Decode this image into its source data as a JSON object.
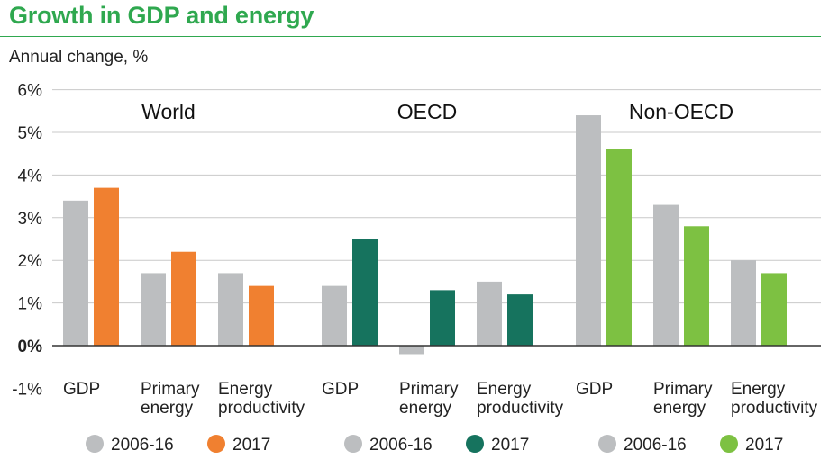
{
  "title": "Growth in GDP and energy",
  "chart_data": {
    "type": "bar",
    "ylabel": "Annual change, %",
    "ylim": [
      -1,
      6
    ],
    "yticks": [
      "-1%",
      "0%",
      "1%",
      "2%",
      "3%",
      "4%",
      "5%",
      "6%"
    ],
    "grid": true,
    "panels": [
      {
        "name": "World",
        "categories": [
          "GDP",
          "Primary energy",
          "Energy productivity"
        ],
        "category_lines": [
          [
            "GDP"
          ],
          [
            "Primary",
            "energy"
          ],
          [
            "Energy",
            "productivity"
          ]
        ],
        "series": [
          {
            "name": "2006-16",
            "color": "#bcbec0",
            "values": [
              3.4,
              1.7,
              1.7
            ]
          },
          {
            "name": "2017",
            "color": "#f08030",
            "values": [
              3.7,
              2.2,
              1.4
            ]
          }
        ]
      },
      {
        "name": "OECD",
        "categories": [
          "GDP",
          "Primary energy",
          "Energy productivity"
        ],
        "category_lines": [
          [
            "GDP"
          ],
          [
            "Primary",
            "energy"
          ],
          [
            "Energy",
            "productivity"
          ]
        ],
        "series": [
          {
            "name": "2006-16",
            "color": "#bcbec0",
            "values": [
              1.4,
              -0.2,
              1.5
            ]
          },
          {
            "name": "2017",
            "color": "#16735e",
            "values": [
              2.5,
              1.3,
              1.2
            ]
          }
        ]
      },
      {
        "name": "Non-OECD",
        "categories": [
          "GDP",
          "Primary energy",
          "Energy productivity"
        ],
        "category_lines": [
          [
            "GDP"
          ],
          [
            "Primary",
            "energy"
          ],
          [
            "Energy",
            "productivity"
          ]
        ],
        "series": [
          {
            "name": "2006-16",
            "color": "#bcbec0",
            "values": [
              5.4,
              3.3,
              2.0
            ]
          },
          {
            "name": "2017",
            "color": "#7dc142",
            "values": [
              4.6,
              2.8,
              1.7
            ]
          }
        ]
      }
    ]
  }
}
